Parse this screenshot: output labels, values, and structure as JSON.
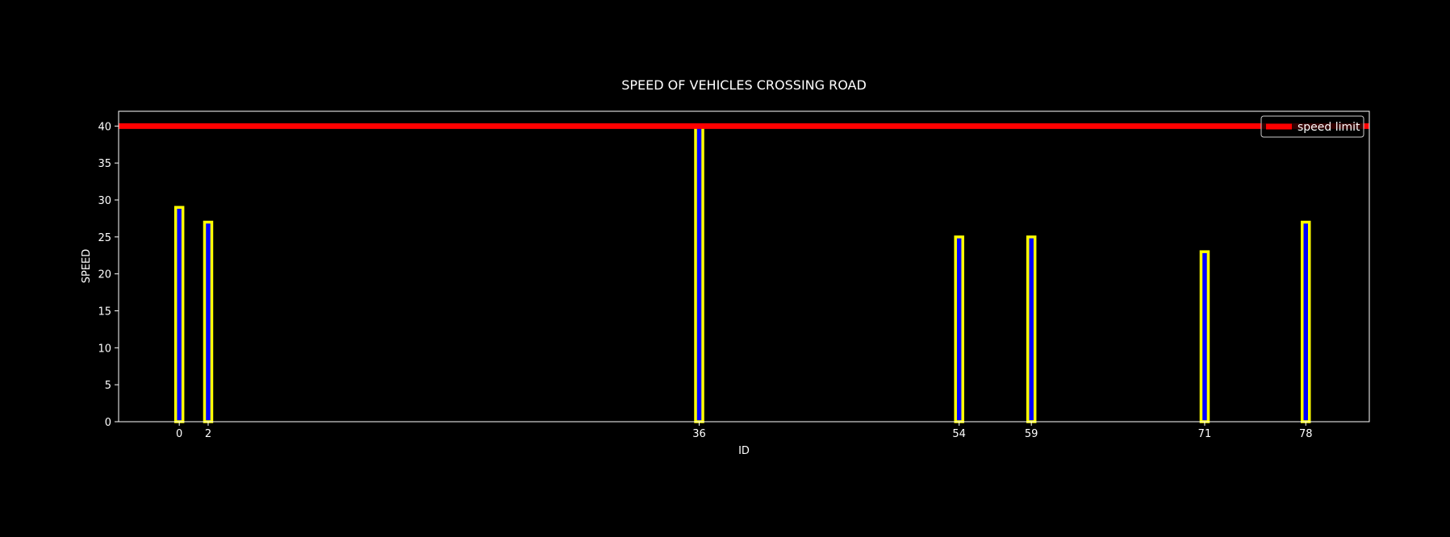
{
  "chart_data": {
    "type": "bar",
    "title": "SPEED OF VEHICLES CROSSING ROAD",
    "xlabel": "ID",
    "ylabel": "SPEED",
    "x": [
      0,
      2,
      36,
      54,
      59,
      71,
      78
    ],
    "values": [
      29,
      27,
      40,
      25,
      25,
      23,
      27
    ],
    "xlim": [
      -4.2,
      82.4
    ],
    "ylim": [
      0,
      42
    ],
    "yticks": [
      0,
      5,
      10,
      15,
      20,
      25,
      30,
      35,
      40
    ],
    "xticks": [
      0,
      2,
      36,
      54,
      59,
      71,
      78
    ],
    "grid": false,
    "bar_fill_color": "#0000ff",
    "bar_edge_color": "#ffff00",
    "reference_line": {
      "label": "speed limit",
      "value": 40,
      "color": "#ff0000"
    },
    "legend": {
      "placement": "top-right",
      "entries": [
        "speed limit"
      ]
    },
    "background_color": "#000000",
    "foreground_color": "#ffffff"
  }
}
